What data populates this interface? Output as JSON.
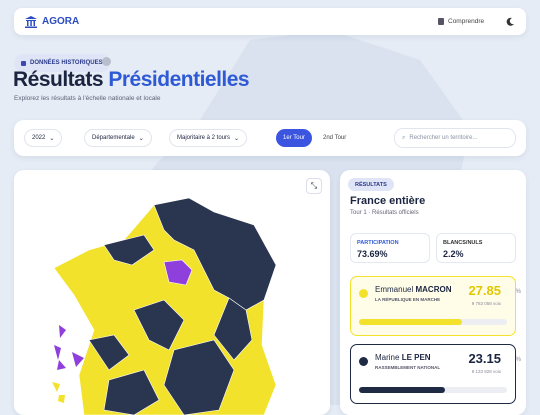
{
  "header": {
    "brand": "AGORA",
    "nav": "Comprendre"
  },
  "hero": {
    "badge": "DONNÉES HISTORIQUES",
    "title_part1": "Résultats",
    "title_part2": "Présidentielles",
    "subtitle": "Explorez les résultats à l'échelle nationale et locale"
  },
  "filters": {
    "year": "2022",
    "level": "Départementale",
    "mode": "Majoritaire à 2 tours",
    "tabs": [
      "1er Tour",
      "2nd Tour"
    ],
    "search": "Rechercher un territoire..."
  },
  "panel": {
    "badge": "RÉSULTATS",
    "title": "France entière",
    "subtitle": "Tour 1 · Résultats officiels",
    "stats": [
      {
        "label": "PARTICIPATION",
        "value": "73.69%"
      },
      {
        "label": "BLANCS/NULS",
        "value": "2.2%"
      }
    ],
    "candidates": [
      {
        "first": "Emmanuel",
        "last": "MACRON",
        "party": "LA RÉPUBLIQUE EN MARCHE",
        "score": 27.85,
        "unit": "%",
        "votes": "9 783 058 voix",
        "color": "#f2e22b"
      },
      {
        "first": "Marine",
        "last": "LE PEN",
        "party": "RASSEMBLEMENT NATIONAL",
        "score": 23.15,
        "unit": "%",
        "votes": "8 133 828 voix",
        "color": "#1f2a44"
      }
    ]
  }
}
